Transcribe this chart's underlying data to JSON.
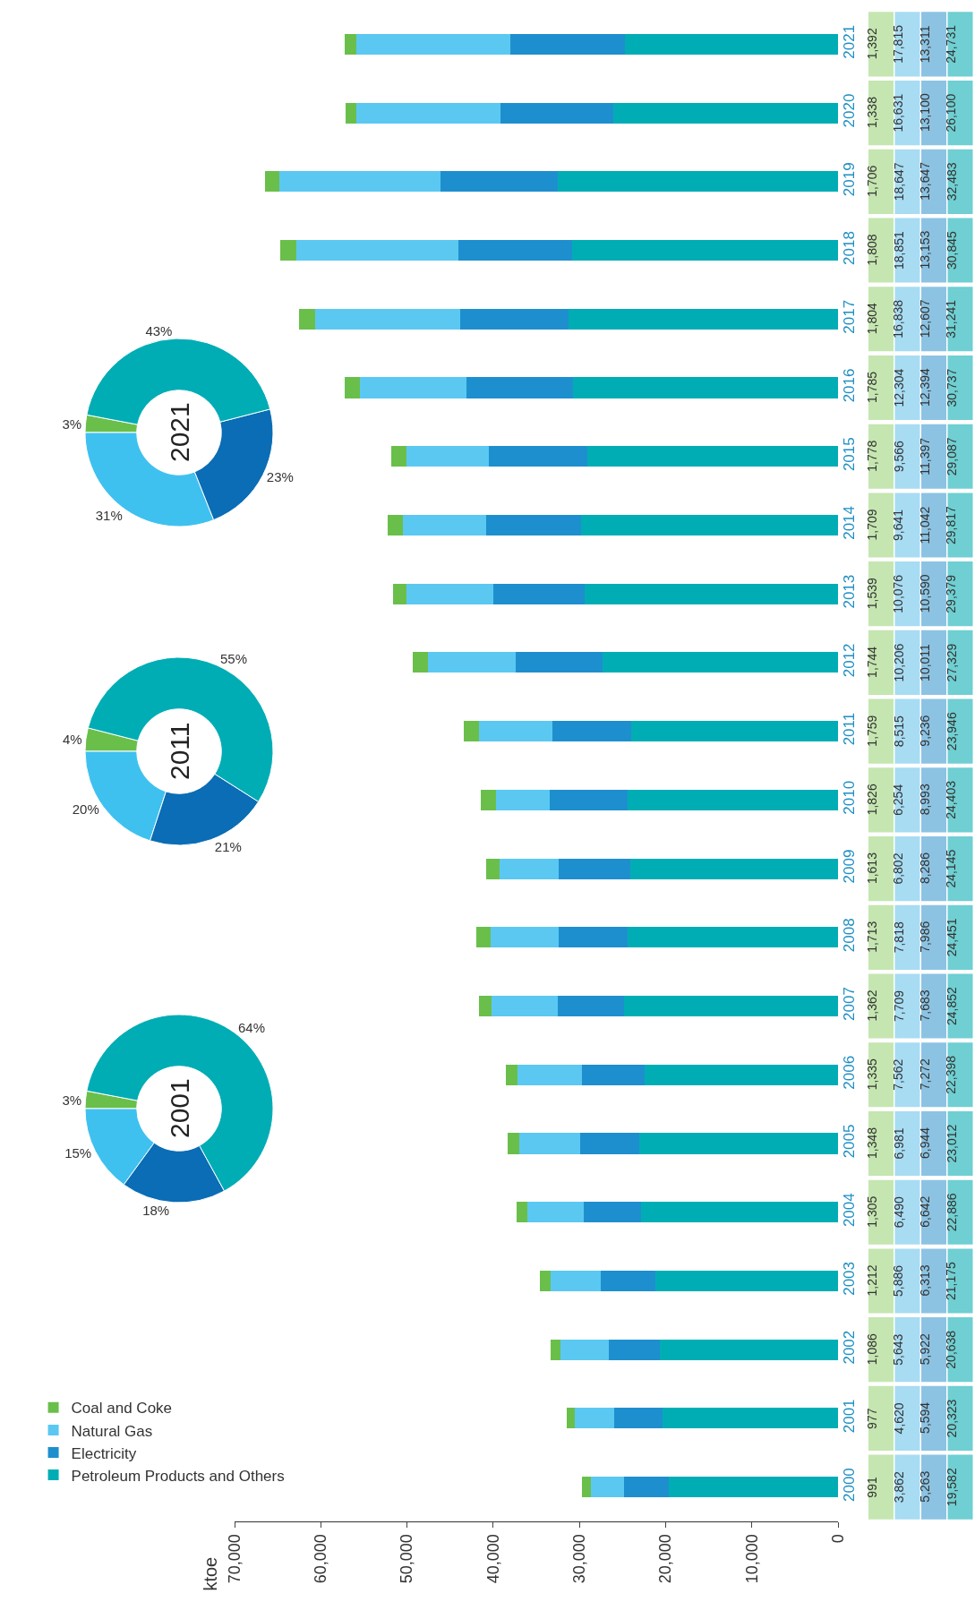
{
  "chart_data": [
    {
      "type": "bar",
      "orientation": "horizontal",
      "stacked": true,
      "annotations": [
        "ktoe"
      ],
      "legend": "bottom left",
      "grid": false,
      "categories": [
        "2021",
        "2020",
        "2019",
        "2018",
        "2017",
        "2016",
        "2015",
        "2014",
        "2013",
        "2012",
        "2011",
        "2010",
        "2009",
        "2008",
        "2007",
        "2006",
        "2005",
        "2004",
        "2003",
        "2002",
        "2001",
        "2000"
      ],
      "xlim": [
        70000,
        0
      ],
      "xticks": [
        0,
        {
          "value": 10000,
          "label": "10,000"
        },
        {
          "value": 20000,
          "label": "20,000"
        },
        {
          "value": 30000,
          "label": "30,000"
        },
        {
          "value": 40000,
          "label": "40,000"
        },
        {
          "value": 50000,
          "label": "50,000"
        },
        {
          "value": 60000,
          "label": "60,000"
        },
        {
          "value": 70000,
          "label": "70,000"
        }
      ],
      "series": [
        {
          "name": "Petroleum Products and Others",
          "color": "#00adb5",
          "values": [
            24731,
            26100,
            32483,
            30845,
            31241,
            30737,
            29087,
            29817,
            29379,
            27329,
            23946,
            24403,
            24145,
            24451,
            24852,
            22398,
            23012,
            22886,
            21175,
            20638,
            20323,
            19582
          ],
          "value_labels": [
            "24,731",
            "26,100",
            "32,483",
            "30,845",
            "31,241",
            "30,737",
            "29,087",
            "29,817",
            "29,379",
            "27,329",
            "23,946",
            "24,403",
            "24,145",
            "24,451",
            "24,852",
            "22,398",
            "23,012",
            "22,886",
            "21,175",
            "20,638",
            "20,323",
            "19,582"
          ]
        },
        {
          "name": "Electricity",
          "color": "#1e8fce",
          "values": [
            13311,
            13100,
            13647,
            13153,
            12607,
            12394,
            11397,
            11042,
            10590,
            10011,
            9236,
            8993,
            8286,
            7986,
            7683,
            7272,
            6944,
            6642,
            6313,
            5922,
            5594,
            5263
          ],
          "value_labels": [
            "13,311",
            "13,100",
            "13,647",
            "13,153",
            "12,607",
            "12,394",
            "11,397",
            "11,042",
            "10,590",
            "10,011",
            "9,236",
            "8,993",
            "8,286",
            "7,986",
            "7,683",
            "7,272",
            "6,944",
            "6,642",
            "6,313",
            "5,922",
            "5,594",
            "5,263"
          ]
        },
        {
          "name": "Natural Gas",
          "color": "#5bc8f2",
          "values": [
            17815,
            16631,
            18647,
            18851,
            16838,
            12304,
            9566,
            9641,
            10076,
            10206,
            8515,
            6254,
            6802,
            7818,
            7709,
            7562,
            6981,
            6490,
            5886,
            5643,
            4620,
            3862
          ],
          "value_labels": [
            "17,815",
            "16,631",
            "18,647",
            "18,851",
            "16,838",
            "12,304",
            "9,566",
            "9,641",
            "10,076",
            "10,206",
            "8,515",
            "6,254",
            "6,802",
            "7,818",
            "7,709",
            "7,562",
            "6,981",
            "6,490",
            "5,886",
            "5,643",
            "4,620",
            "3,862"
          ]
        },
        {
          "name": "Coal and Coke",
          "color": "#6abf4b",
          "values": [
            1392,
            1338,
            1706,
            1808,
            1804,
            1785,
            1778,
            1709,
            1539,
            1744,
            1759,
            1826,
            1613,
            1713,
            1362,
            1335,
            1348,
            1305,
            1212,
            1086,
            977,
            991
          ],
          "value_labels": [
            "1,392",
            "1,338",
            "1,706",
            "1,808",
            "1,804",
            "1,785",
            "1,778",
            "1,709",
            "1,539",
            "1,744",
            "1,759",
            "1,826",
            "1,613",
            "1,713",
            "1,362",
            "1,335",
            "1,348",
            "1,305",
            "1,212",
            "1,086",
            "977",
            "991"
          ]
        }
      ]
    },
    {
      "type": "donut",
      "title": "2001",
      "categories": [
        null,
        null,
        null,
        null
      ],
      "values": [
        3,
        15,
        18,
        64
      ],
      "value_labels": [
        "3%",
        "15%",
        "18%",
        "64%"
      ],
      "colors": [
        "#6abf4b",
        "#3fc1f0",
        "#0a6db5",
        "#00adb5"
      ]
    },
    {
      "type": "donut",
      "title": "2011",
      "categories": [
        null,
        null,
        null,
        null
      ],
      "values": [
        4,
        20,
        21,
        55
      ],
      "value_labels": [
        "4%",
        "20%",
        "21%",
        "55%"
      ],
      "colors": [
        "#6abf4b",
        "#3fc1f0",
        "#0a6db5",
        "#00adb5"
      ]
    },
    {
      "type": "donut",
      "title": "2021",
      "categories": [
        null,
        null,
        null,
        null
      ],
      "values": [
        3,
        31,
        23,
        43
      ],
      "value_labels": [
        "3%",
        "31%",
        "23%",
        "43%"
      ],
      "colors": [
        "#6abf4b",
        "#3fc1f0",
        "#0a6db5",
        "#00adb5"
      ]
    }
  ]
}
